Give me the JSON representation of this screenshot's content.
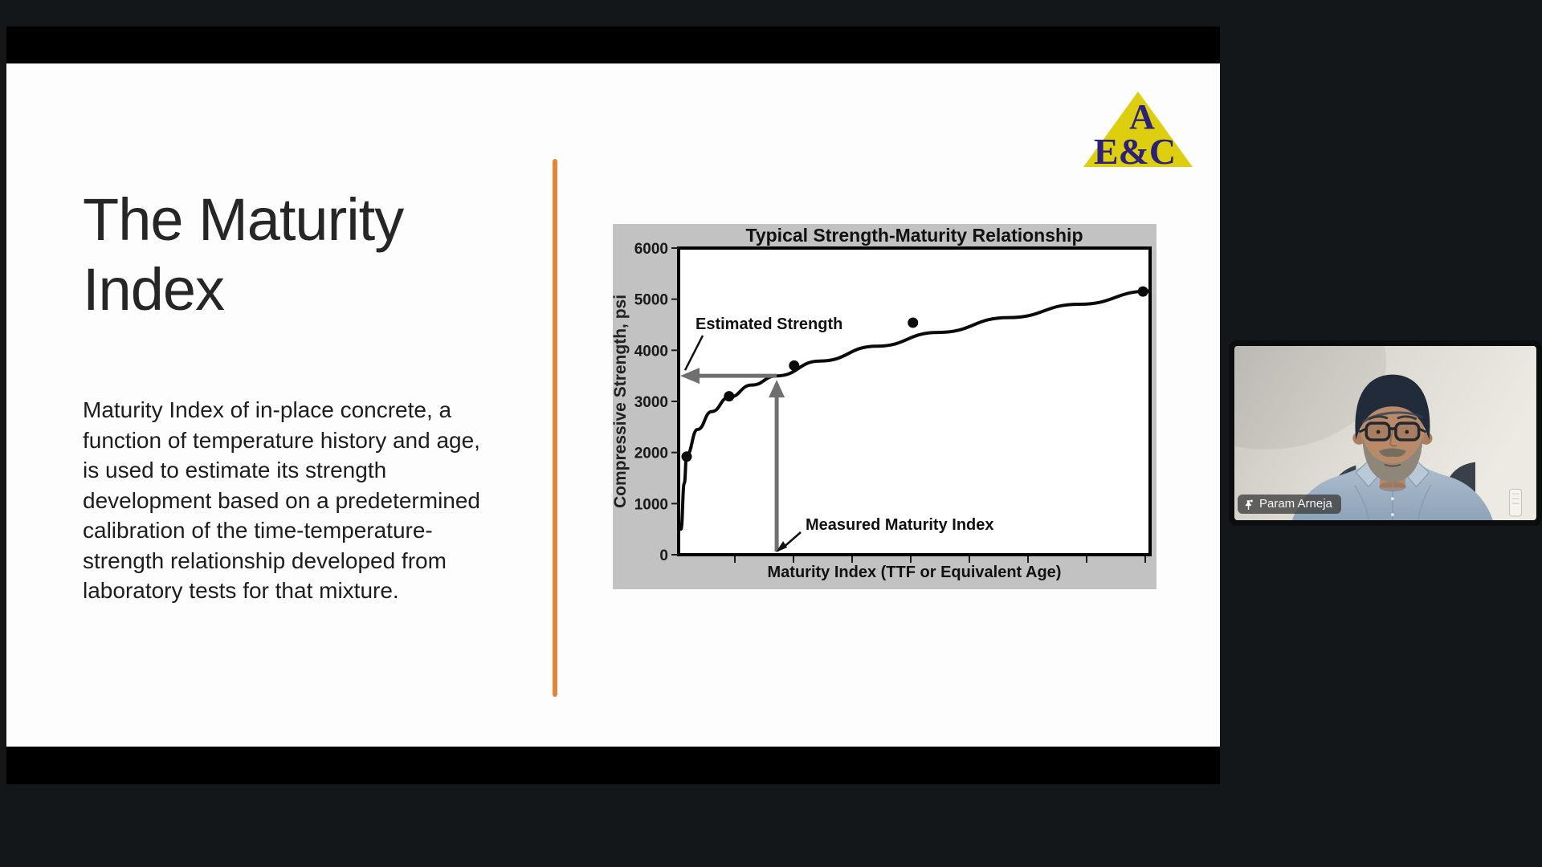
{
  "slide": {
    "title": "The Maturity\nIndex",
    "body": "Maturity Index of in-place concrete, a\nfunction of temperature history and age,\nis used to estimate its strength\ndevelopment based on a predetermined\ncalibration of the time-temperature-\nstrength relationship developed from\nlaboratory tests for that mixture.",
    "divider_color": "#e0873b",
    "logo": {
      "top_text": "A",
      "bottom_text": "E&C",
      "triangle_color": "#ddce10",
      "text_color": "#2c2178"
    }
  },
  "chart_data": {
    "type": "scatter",
    "title": "Typical Strength-Maturity Relationship",
    "xlabel": "Maturity Index (TTF or Equivalent Age)",
    "ylabel": "Compressive Strength, psi",
    "ylim": [
      0,
      6000
    ],
    "yticks": [
      6000,
      5000,
      4000,
      3000,
      2000,
      1000,
      0
    ],
    "x_tick_labels_shown": false,
    "background": "#c2c2c2",
    "plot_background": "#ffffff",
    "points": [
      {
        "x": 0.017,
        "y": 1920
      },
      {
        "x": 0.107,
        "y": 3100
      },
      {
        "x": 0.245,
        "y": 3700
      },
      {
        "x": 0.497,
        "y": 4540
      },
      {
        "x": 0.985,
        "y": 5150
      }
    ],
    "curve": [
      [
        0.005,
        500
      ],
      [
        0.012,
        1400
      ],
      [
        0.017,
        1950
      ],
      [
        0.04,
        2450
      ],
      [
        0.07,
        2800
      ],
      [
        0.107,
        3080
      ],
      [
        0.155,
        3320
      ],
      [
        0.208,
        3500
      ],
      [
        0.3,
        3790
      ],
      [
        0.42,
        4080
      ],
      [
        0.55,
        4350
      ],
      [
        0.7,
        4640
      ],
      [
        0.85,
        4900
      ],
      [
        1.0,
        5160
      ]
    ],
    "annotations": {
      "estimated_strength": {
        "label": "Estimated Strength",
        "value_psi": 3500
      },
      "measured_maturity": {
        "label": "Measured Maturity Index",
        "x_fraction": 0.208
      }
    },
    "arrow_color": "#6f6f6f"
  },
  "webcam": {
    "participant_name": "Param Arneja",
    "pinned": true
  }
}
